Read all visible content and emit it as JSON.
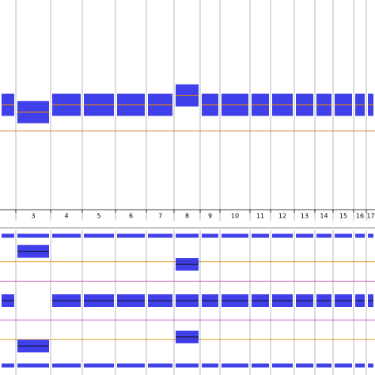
{
  "chart_data": {
    "type": "copy-number",
    "categories": [
      null,
      "3",
      "4",
      "5",
      "6",
      "7",
      "8",
      "9",
      "10",
      "11",
      "12",
      "13",
      "14",
      "15",
      "16",
      "17"
    ],
    "color": "#1f1fe6",
    "logr": [
      0,
      -0.07,
      0,
      0,
      0,
      0,
      0.09,
      0,
      0,
      0,
      0,
      0,
      0,
      0,
      0,
      0
    ],
    "ylim": [
      -1,
      1
    ],
    "reference_lines": [
      -0.25
    ],
    "baf_bands": [
      [
        0,
        0.5,
        1
      ],
      [
        0,
        0.15,
        0.88,
        1
      ],
      [
        0,
        0.5,
        1
      ],
      [
        0,
        0.5,
        1
      ],
      [
        0,
        0.5,
        1
      ],
      [
        0,
        0.5,
        1
      ],
      [
        0,
        0.22,
        0.5,
        0.78,
        1
      ],
      [
        0,
        0.5,
        1
      ],
      [
        0,
        0.5,
        1
      ],
      [
        0,
        0.5,
        1
      ],
      [
        0,
        0.5,
        1
      ],
      [
        0,
        0.5,
        1
      ],
      [
        0,
        0.5,
        1
      ],
      [
        0,
        0.5,
        1
      ],
      [
        0,
        0.5,
        1
      ],
      [
        0,
        0.5,
        1
      ]
    ],
    "y2lim": [
      0,
      1
    ],
    "baf_lines": [
      0.2,
      0.35,
      0.65,
      0.8
    ]
  }
}
